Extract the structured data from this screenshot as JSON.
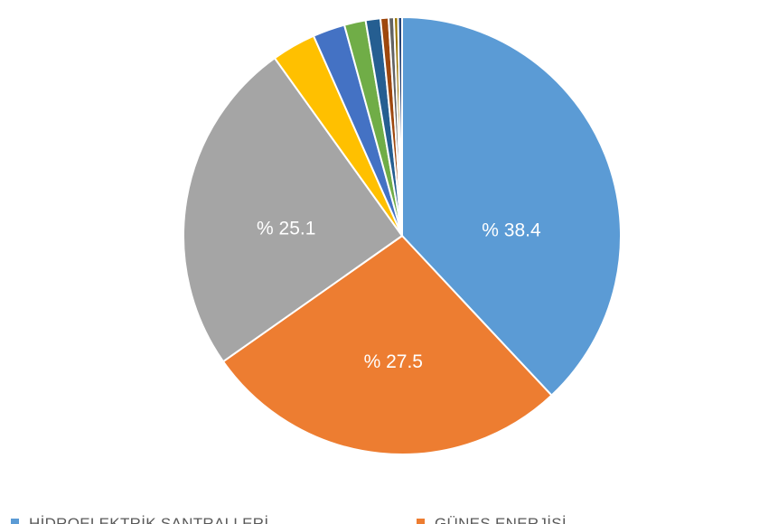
{
  "chart_data": {
    "type": "pie",
    "title": "",
    "label_prefix": "% ",
    "categories": [
      "HİDROELEKTRİK SANTRALLERİ",
      "GÜNEŞ ENERJİSİ",
      "",
      "",
      "",
      "",
      "",
      "",
      "",
      "",
      ""
    ],
    "values": [
      38.4,
      27.5,
      25.1,
      3.3,
      2.4,
      1.6,
      1.1,
      0.6,
      0.4,
      0.3,
      0.3
    ],
    "data_labels": [
      "38.4",
      "27.5",
      "25.1",
      "",
      "",
      "",
      "",
      "",
      "",
      "",
      ""
    ],
    "colors": [
      "#5B9BD5",
      "#ED7D31",
      "#A5A5A5",
      "#FFC000",
      "#4472C4",
      "#70AD47",
      "#255E91",
      "#9E480E",
      "#636363",
      "#997300",
      "#264478"
    ],
    "legend": {
      "position": "bottom",
      "visible_entries": [
        0,
        1
      ]
    },
    "grid": false
  }
}
